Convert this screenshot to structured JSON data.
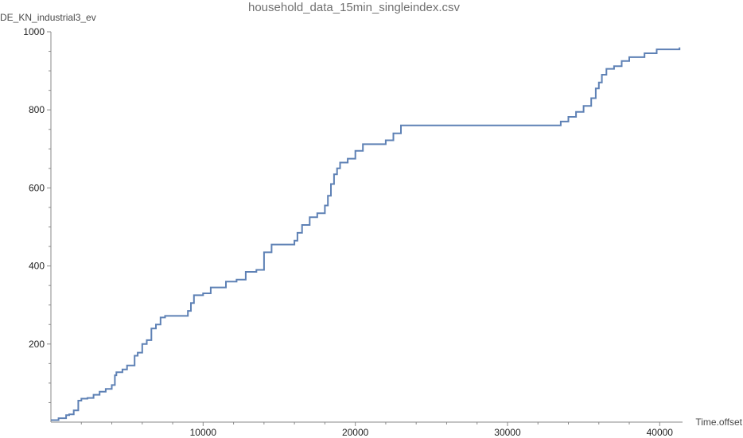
{
  "chart_data": {
    "type": "line",
    "title": "household_data_15min_singleindex.csv",
    "xlabel": "Time.offset",
    "ylabel": "DE_KN_industrial3_ev",
    "xlim": [
      0,
      41500
    ],
    "ylim": [
      0,
      1000
    ],
    "x_ticks": [
      10000,
      20000,
      30000,
      40000
    ],
    "y_ticks": [
      200,
      400,
      600,
      800,
      1000
    ],
    "line_color": "#5e81b5",
    "series": [
      {
        "step": true,
        "x": [
          0,
          500,
          1000,
          1200,
          1500,
          1800,
          2000,
          2400,
          2800,
          3200,
          3600,
          4000,
          4200,
          4300,
          4700,
          5000,
          5500,
          5700,
          6000,
          6300,
          6600,
          6900,
          7200,
          7500,
          8500,
          9000,
          9200,
          9400,
          10000,
          10500,
          11500,
          12200,
          12800,
          13500,
          14000,
          14500,
          15500,
          16000,
          16200,
          16500,
          17000,
          17500,
          18000,
          18200,
          18400,
          18600,
          18800,
          19000,
          19500,
          20000,
          20500,
          22000,
          22500,
          23000,
          32800,
          33500,
          34000,
          34500,
          35000,
          35500,
          35800,
          36000,
          36200,
          36500,
          37000,
          37500,
          38000,
          39000,
          39800,
          41000,
          41300
        ],
        "y": [
          5,
          10,
          18,
          20,
          30,
          55,
          60,
          62,
          70,
          78,
          85,
          95,
          120,
          128,
          135,
          145,
          170,
          178,
          200,
          210,
          240,
          250,
          268,
          272,
          272,
          285,
          305,
          325,
          330,
          345,
          360,
          365,
          385,
          390,
          435,
          455,
          455,
          465,
          485,
          505,
          525,
          535,
          555,
          580,
          610,
          635,
          650,
          665,
          675,
          695,
          712,
          722,
          740,
          760,
          760,
          770,
          782,
          795,
          810,
          830,
          855,
          870,
          890,
          905,
          912,
          925,
          935,
          945,
          955,
          955,
          960
        ]
      }
    ]
  }
}
